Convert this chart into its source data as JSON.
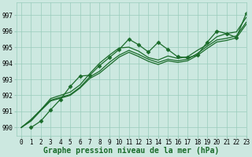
{
  "title": "Graphe pression niveau de la mer (hPa)",
  "background_color": "#cce8e0",
  "grid_color": "#99ccbb",
  "line_color": "#1a6b2a",
  "marker_color": "#1a6b2a",
  "xlim": [
    -0.5,
    23
  ],
  "ylim": [
    989.5,
    997.8
  ],
  "yticks": [
    990,
    991,
    992,
    993,
    994,
    995,
    996,
    997
  ],
  "xticks": [
    0,
    1,
    2,
    3,
    4,
    5,
    6,
    7,
    8,
    9,
    10,
    11,
    12,
    13,
    14,
    15,
    16,
    17,
    18,
    19,
    20,
    21,
    22,
    23
  ],
  "lines": [
    [
      990.0,
      990.4,
      991.1,
      991.75,
      992.55,
      993.2,
      993.25,
      993.85,
      994.35,
      994.85,
      995.5,
      995.15,
      994.7,
      995.3,
      994.85,
      994.4,
      994.35,
      994.5,
      995.3,
      996.0,
      995.85,
      995.6,
      997.1
    ],
    [
      990.0,
      990.5,
      991.1,
      991.8,
      992.0,
      992.2,
      992.65,
      993.35,
      994.0,
      994.5,
      994.95,
      995.0,
      994.75,
      994.35,
      994.2,
      994.45,
      994.3,
      994.4,
      994.8,
      995.15,
      995.65,
      995.85,
      995.95,
      996.85
    ],
    [
      990.0,
      990.45,
      991.1,
      991.7,
      991.88,
      992.05,
      992.5,
      993.15,
      993.5,
      994.05,
      994.5,
      994.8,
      994.55,
      994.25,
      994.05,
      994.25,
      994.15,
      994.25,
      994.6,
      995.05,
      995.45,
      995.55,
      995.7,
      996.55
    ],
    [
      990.0,
      990.4,
      991.05,
      991.65,
      991.82,
      992.0,
      992.45,
      993.05,
      993.38,
      993.88,
      994.38,
      994.68,
      994.42,
      994.12,
      993.92,
      994.15,
      994.05,
      994.15,
      994.48,
      994.92,
      995.32,
      995.42,
      995.58,
      996.42
    ]
  ],
  "marker_lines": [
    0
  ],
  "marker_style": "D",
  "marker_size": 2.5,
  "linewidth": 0.9,
  "title_fontsize": 7,
  "tick_fontsize": 5.5
}
